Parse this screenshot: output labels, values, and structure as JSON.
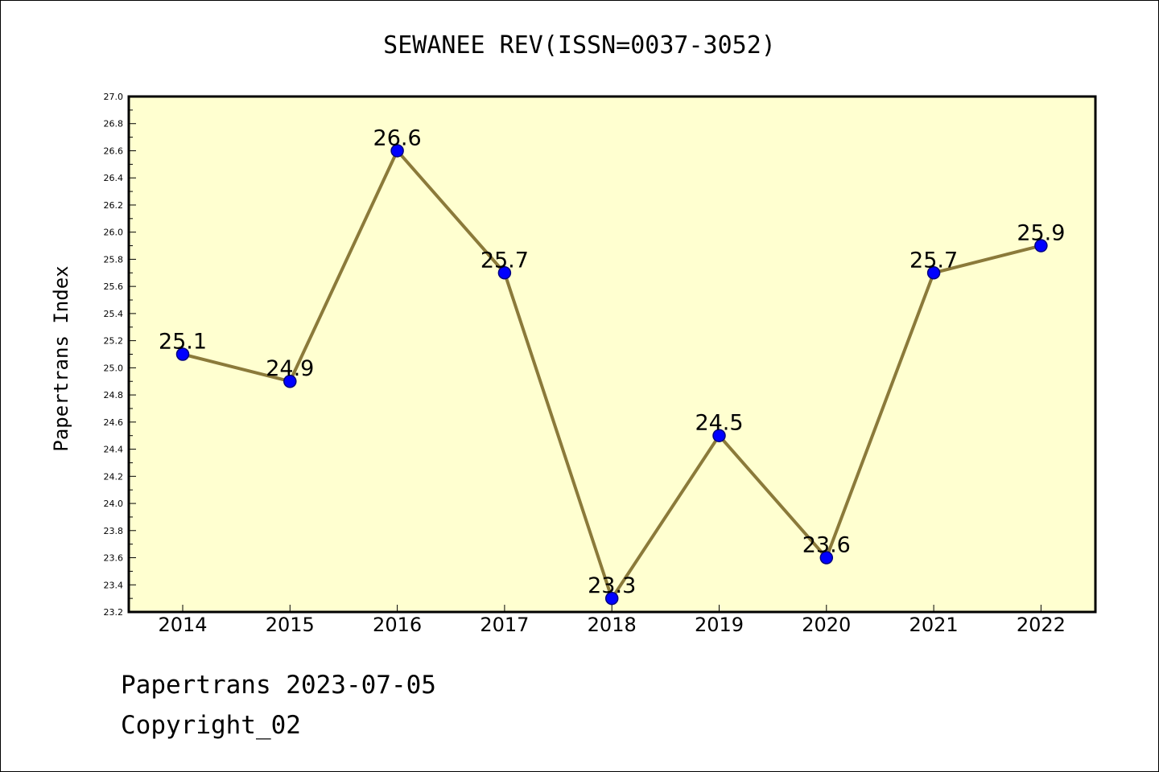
{
  "chart_data": {
    "type": "line",
    "title": "SEWANEE REV(ISSN=0037-3052)",
    "ylabel": "Papertrans Index",
    "xlabel": "",
    "categories": [
      "2014",
      "2015",
      "2016",
      "2017",
      "2018",
      "2019",
      "2020",
      "2021",
      "2022"
    ],
    "values": [
      25.1,
      24.9,
      26.6,
      25.7,
      23.3,
      24.5,
      23.6,
      25.7,
      25.9
    ],
    "data_labels": [
      "25.1",
      "24.9",
      "26.6",
      "25.7",
      "23.3",
      "24.5",
      "23.6",
      "25.7",
      "25.9"
    ],
    "ylim": [
      23.2,
      27.0
    ],
    "yticks": [
      "23.2",
      "23.4",
      "23.6",
      "23.8",
      "24.0",
      "24.2",
      "24.4",
      "24.6",
      "24.8",
      "25.0",
      "25.2",
      "25.4",
      "25.6",
      "25.8",
      "26.0",
      "26.2",
      "26.4",
      "26.6",
      "26.8",
      "27.0"
    ],
    "grid": false,
    "colors": {
      "plot_background": "#ffffd0",
      "line": "#8b7a3a",
      "marker_fill": "#0000ff",
      "marker_edge": "#000080"
    }
  },
  "footer": {
    "line1": "Papertrans 2023-07-05",
    "line2": "Copyright_02"
  }
}
